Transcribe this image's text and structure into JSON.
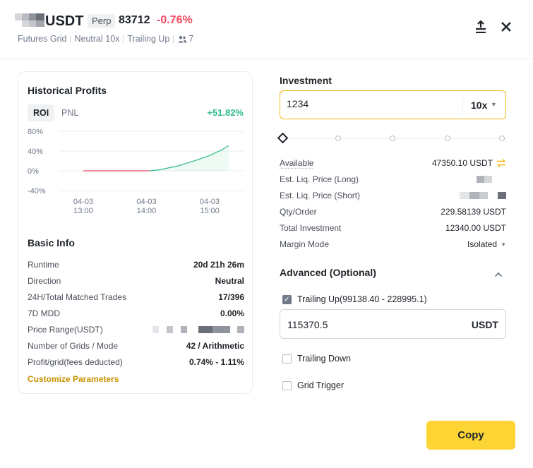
{
  "header": {
    "symbol": "USDT",
    "badge": "Perp",
    "price": "83712",
    "change": "-0.76%",
    "tags": [
      "Futures Grid",
      "Neutral 10x",
      "Trailing Up"
    ],
    "followers": "7",
    "icons": {
      "share": "share-icon",
      "close": "close-icon"
    }
  },
  "historical": {
    "title": "Historical Profits",
    "tabs": [
      "ROI",
      "PNL"
    ],
    "active_tab": "ROI",
    "roi_value": "+51.82%"
  },
  "chart_data": {
    "type": "line",
    "yticks": [
      "80%",
      "40%",
      "0%",
      "-40%"
    ],
    "ylim": [
      -40,
      80
    ],
    "xticks": [
      [
        "04-03",
        "13:00"
      ],
      [
        "04-03",
        "14:00"
      ],
      [
        "04-03",
        "15:00"
      ]
    ],
    "grid": true,
    "series": [
      {
        "color_negative": "#f6465d",
        "color_positive": "#2ebd85",
        "points": [
          [
            0.0,
            0
          ],
          [
            1.05,
            0
          ],
          [
            1.2,
            2
          ],
          [
            1.5,
            10
          ],
          [
            1.8,
            22
          ],
          [
            2.0,
            31
          ],
          [
            2.2,
            43
          ],
          [
            2.3,
            51
          ]
        ]
      }
    ]
  },
  "basic_info": {
    "title": "Basic Info",
    "rows": [
      {
        "key": "Runtime",
        "value": "20d 21h 26m"
      },
      {
        "key": "Direction",
        "value": "Neutral"
      },
      {
        "key": "24H/Total Matched Trades",
        "value": "17/396"
      },
      {
        "key": "7D MDD",
        "value": "0.00%"
      },
      {
        "key": "Price Range(USDT)",
        "value": ""
      },
      {
        "key": "Number of Grids / Mode",
        "value": "42 / Arithmetic"
      },
      {
        "key": "Profit/grid(fees deducted)",
        "value": "0.74% - 1.11%"
      }
    ],
    "customize_label": "Customize Parameters"
  },
  "investment": {
    "title": "Investment",
    "amount": "1234",
    "leverage": "10x",
    "slider_steps": 6,
    "slider_value_index": 0
  },
  "details": [
    {
      "key": "Available",
      "value": "47350.10 USDT"
    },
    {
      "key": "Est. Liq. Price (Long)",
      "value": ""
    },
    {
      "key": "Est. Liq. Price (Short)",
      "value": ""
    },
    {
      "key": "Qty/Order",
      "value": "229.58139 USDT"
    },
    {
      "key": "Total Investment",
      "value": "12340.00 USDT"
    },
    {
      "key": "Margin Mode",
      "value": "Isolated"
    }
  ],
  "advanced": {
    "title": "Advanced (Optional)",
    "trailing_up": {
      "label": "Trailing Up(99138.40 - 228995.1)",
      "checked": true,
      "value": "115370.5",
      "unit": "USDT"
    },
    "trailing_down": {
      "label": "Trailing Down",
      "checked": false
    },
    "grid_trigger": {
      "label": "Grid Trigger",
      "checked": false
    }
  },
  "copy_label": "Copy",
  "colors": {
    "accent": "#fcd535",
    "positive": "#2ebd85",
    "negative": "#f6465d",
    "link": "#c99400"
  }
}
